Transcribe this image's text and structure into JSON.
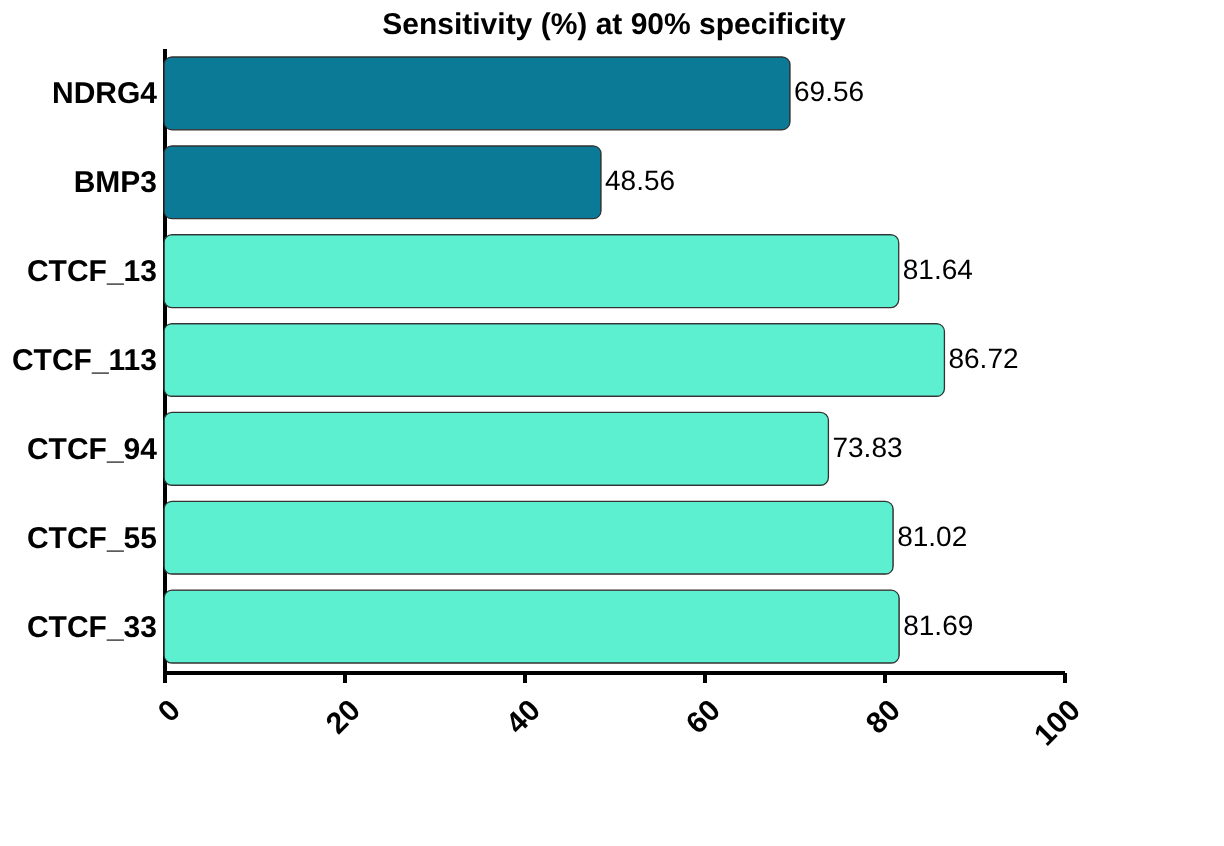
{
  "chart_data": {
    "type": "bar",
    "orientation": "horizontal",
    "title": "Sensitivity (%) at 90% specificity",
    "categories": [
      "NDRG4",
      "BMP3",
      "CTCF_13",
      "CTCF_113",
      "CTCF_94",
      "CTCF_55",
      "CTCF_33"
    ],
    "values": [
      69.56,
      48.56,
      81.64,
      86.72,
      73.83,
      81.02,
      81.69
    ],
    "colors": [
      "#0b7a96",
      "#0b7a96",
      "#5cefd0",
      "#5cefd0",
      "#5cefd0",
      "#5cefd0",
      "#5cefd0"
    ],
    "xlim": [
      0,
      100
    ],
    "xticks": [
      0,
      20,
      40,
      60,
      80,
      100
    ],
    "data_labels": true,
    "grid": false
  }
}
